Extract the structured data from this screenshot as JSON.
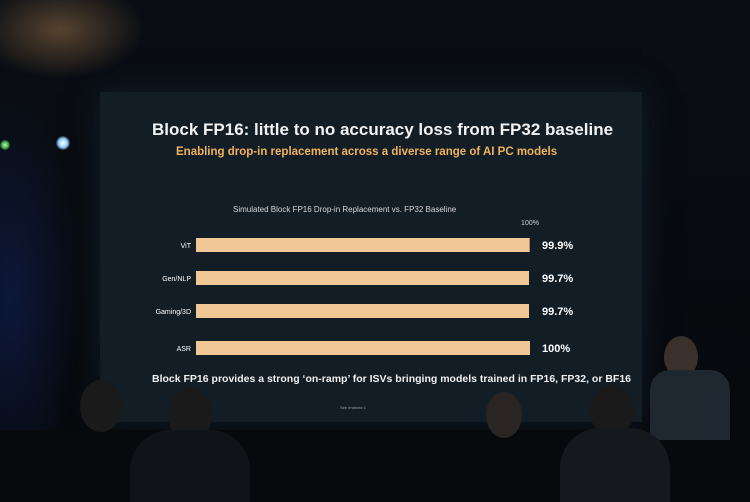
{
  "slide": {
    "title": "Block FP16: little to no accuracy loss from FP32 baseline",
    "subtitle": "Enabling drop-in replacement across a diverse range of AI PC models",
    "footnote": "Block FP16 provides a strong ‘on-ramp’ for ISVs bringing models trained in FP16, FP32, or BF16",
    "source_note": "See endnote 1"
  },
  "chart_data": {
    "type": "bar",
    "orientation": "horizontal",
    "title": "Simulated Block FP16 Drop-in Replacement vs. FP32 Baseline",
    "categories": [
      "ViT",
      "Gen/NLP",
      "Gaming/3D",
      "ASR"
    ],
    "values": [
      99.9,
      99.7,
      99.7,
      100
    ],
    "value_labels": [
      "99.9%",
      "99.7%",
      "99.7%",
      "100%"
    ],
    "reference_label": "100%",
    "xlim": [
      0,
      100
    ],
    "grid": false,
    "legend": "none",
    "colors": {
      "bar": "#f2c796",
      "text": "#ffffff",
      "background": "#121d26"
    }
  }
}
